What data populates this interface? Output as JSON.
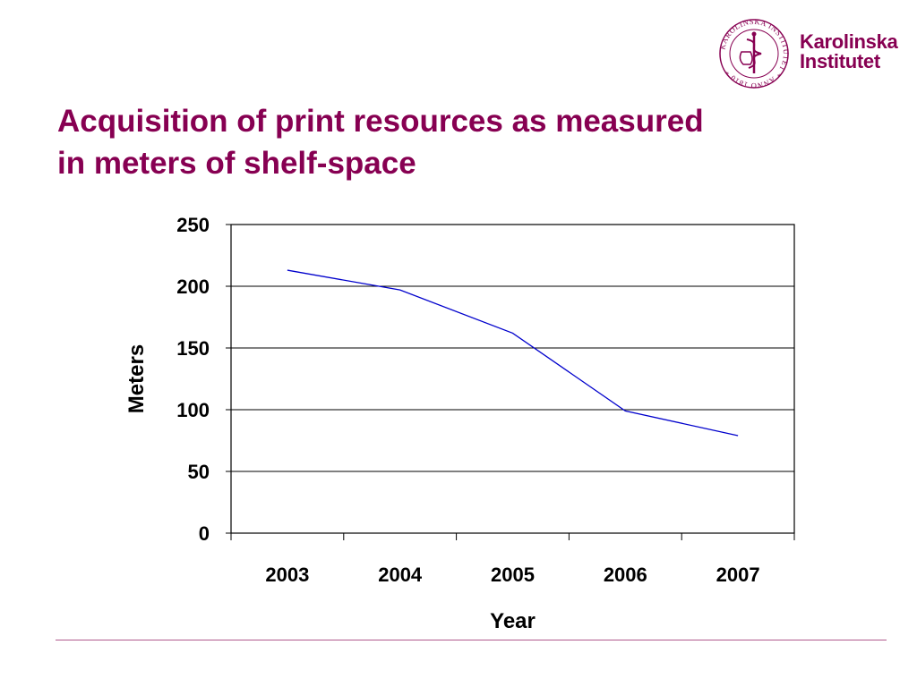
{
  "slide": {
    "title_line1": "Acquisition of print resources as measured",
    "title_line2": "in meters of shelf-space",
    "title_color": "#870052",
    "accent_color": "#870052"
  },
  "logo": {
    "name_line1": "Karolinska",
    "name_line2": "Institutet",
    "seal_text": "KAROLINSKA INSTITUTET * ANNO 1810 *",
    "icon": "karolinska-seal-icon"
  },
  "chart_data": {
    "type": "line",
    "title": "",
    "xlabel": "Year",
    "ylabel": "Meters",
    "categories": [
      "2003",
      "2004",
      "2005",
      "2006",
      "2007"
    ],
    "series": [
      {
        "values": [
          213,
          197,
          162,
          99,
          79
        ],
        "color": "#0000cc"
      }
    ],
    "ylim": [
      0,
      250
    ],
    "yticks": [
      0,
      50,
      100,
      150,
      200,
      250
    ],
    "grid": true,
    "legend": "none"
  }
}
